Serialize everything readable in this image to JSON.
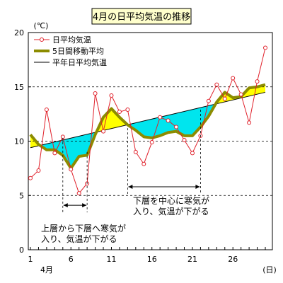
{
  "chart_data": {
    "type": "line",
    "title": "4月の日平均気温の推移",
    "ylabel": "(℃)",
    "xlabel": "(日)",
    "month_label": "4月",
    "ylim": [
      0,
      20
    ],
    "xlim": [
      1,
      31
    ],
    "yticks": [
      0,
      5,
      10,
      15,
      20
    ],
    "xticks": [
      1,
      6,
      11,
      16,
      21,
      26
    ],
    "grid": "dashed horizontal at 5, 10, 15",
    "legend_position": "top-left",
    "series": [
      {
        "name": "日平均気温",
        "style": "thin line with open circle markers",
        "color": "#e0202a",
        "x": [
          1,
          2,
          3,
          4,
          5,
          6,
          7,
          8,
          9,
          10,
          11,
          12,
          13,
          14,
          15,
          16,
          17,
          18,
          19,
          20,
          21,
          22,
          23,
          24,
          25,
          26,
          27,
          28,
          29,
          30
        ],
        "values": [
          6.6,
          7.3,
          12.9,
          8.9,
          10.4,
          7.4,
          5.2,
          6.1,
          14.4,
          10.9,
          14.2,
          12.7,
          12.9,
          9.0,
          7.9,
          9.9,
          12.2,
          11.9,
          11.3,
          10.1,
          8.9,
          10.5,
          13.7,
          15.2,
          13.9,
          15.8,
          14.3,
          11.7,
          15.5,
          18.6
        ]
      },
      {
        "name": "5日間移動平均",
        "style": "thick line",
        "color": "#8c8c00",
        "x": [
          1,
          2,
          3,
          4,
          5,
          6,
          7,
          8,
          9,
          10,
          11,
          12,
          13,
          14,
          15,
          16,
          17,
          18,
          19,
          20,
          21,
          22,
          23,
          24,
          25,
          26,
          27,
          28,
          29,
          30
        ],
        "values": [
          10.6,
          9.7,
          9.2,
          9.2,
          8.7,
          7.5,
          8.6,
          8.7,
          10.6,
          12.2,
          13.0,
          12.2,
          11.5,
          11.0,
          10.4,
          10.3,
          10.5,
          10.8,
          10.9,
          10.5,
          10.5,
          11.3,
          12.3,
          13.6,
          14.5,
          14.0,
          14.1,
          14.9,
          15.0,
          15.2
        ]
      },
      {
        "name": "平年日平均気温",
        "style": "thin line",
        "color": "#000000",
        "x": [
          1,
          30
        ],
        "values": [
          9.4,
          14.5
        ]
      }
    ],
    "fill_between": {
      "series_a": "5日間移動平均",
      "series_b": "平年日平均気温",
      "color_above": "#ffff00",
      "color_below": "#00e5ee"
    },
    "annotations": [
      {
        "lines": [
          "上層から下層へ寒気が",
          "入り、気温が下がる"
        ],
        "span_days": [
          5,
          8
        ],
        "bracket_y": 4.1
      },
      {
        "lines": [
          "下層を中心に寒気が",
          "入り、気温が下がる"
        ],
        "span_days": [
          13,
          22
        ],
        "bracket_y": 5.8
      }
    ]
  }
}
